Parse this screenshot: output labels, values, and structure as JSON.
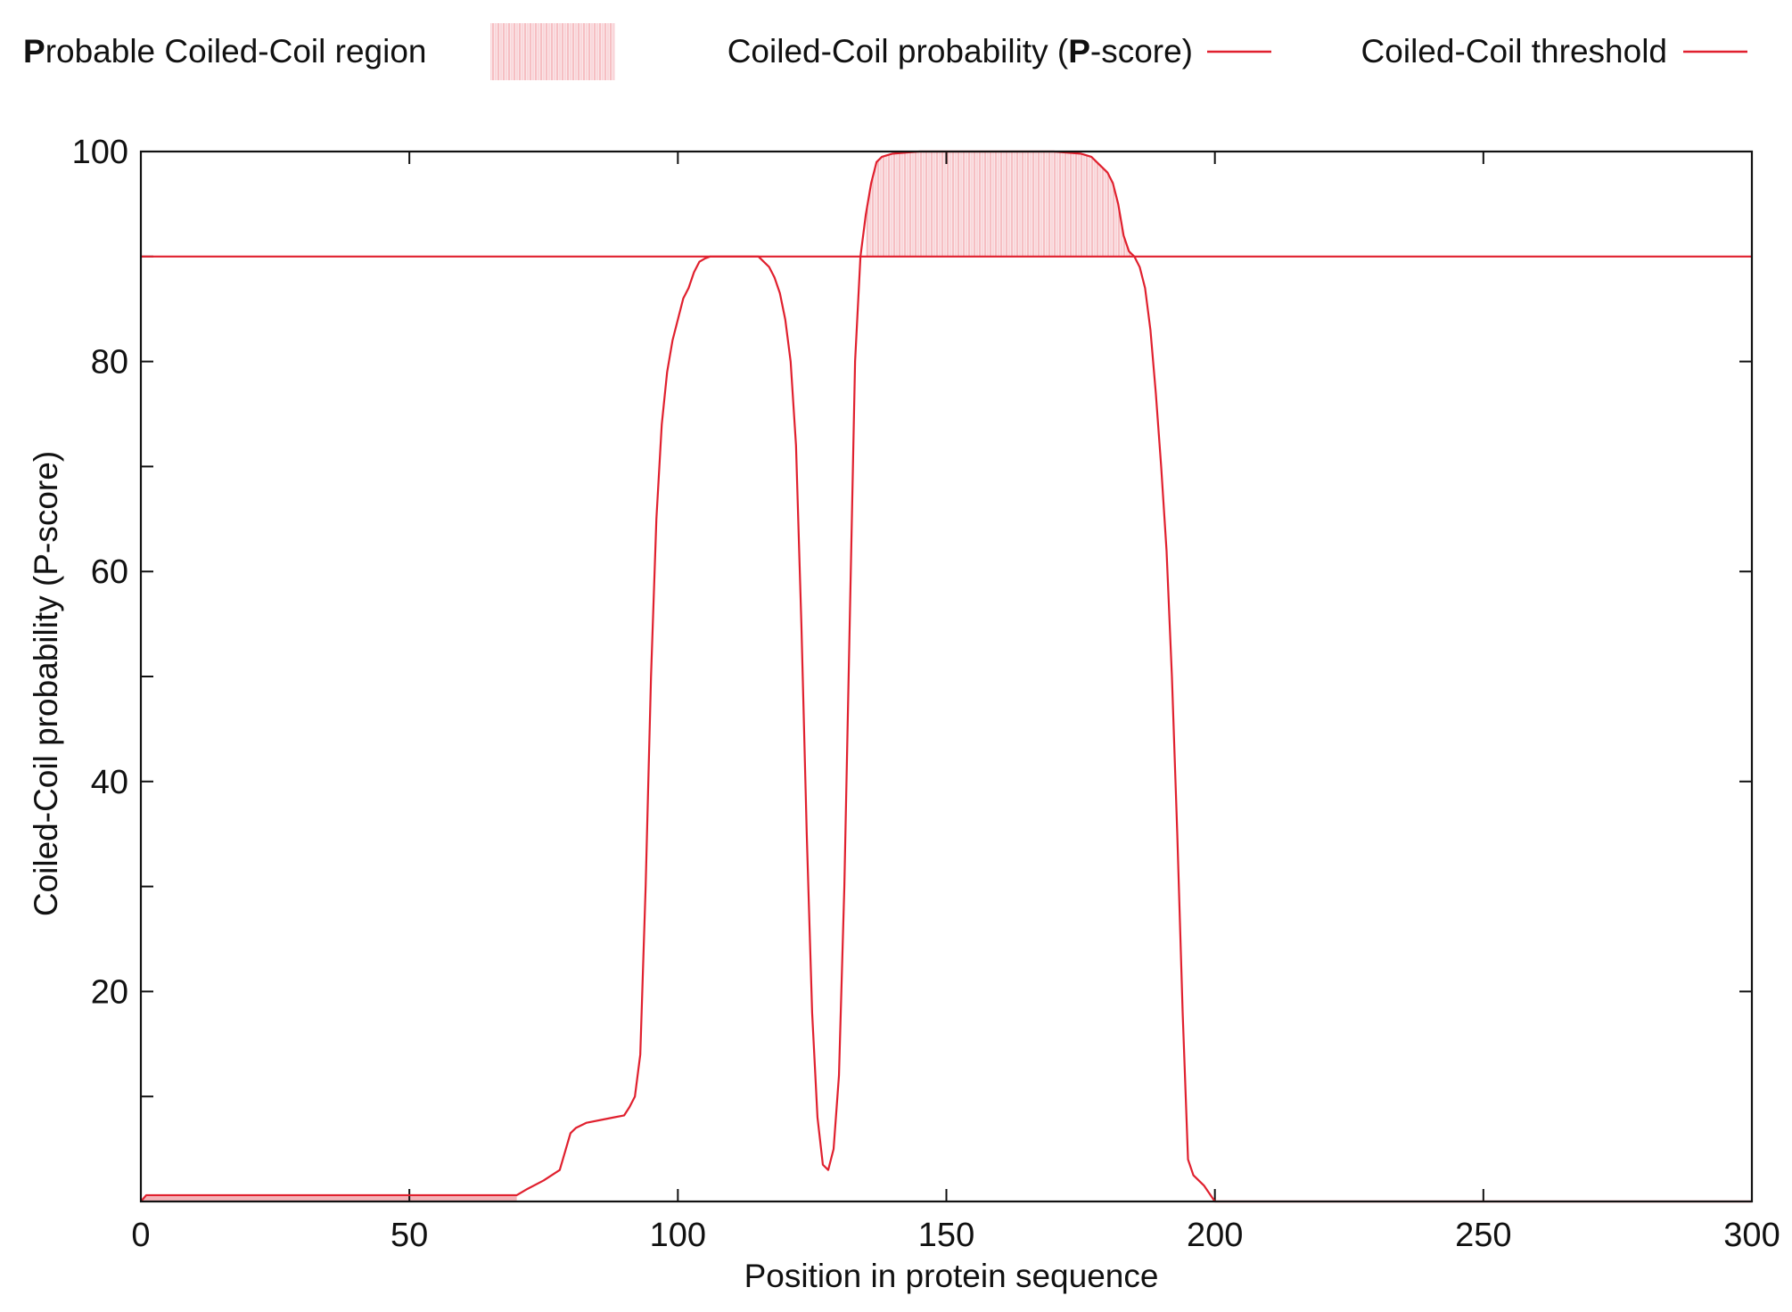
{
  "chart_data": {
    "type": "line",
    "legend": {
      "placement": "top",
      "entries": [
        {
          "label_prefix": "P",
          "label_rest": "robable Coiled-Coil region",
          "kind": "region",
          "color": "#f4b3b8"
        },
        {
          "label_prefix": "Coiled-Coil probability (",
          "label_bold": "P",
          "label_rest": "-score)",
          "kind": "line",
          "color": "#e0202e"
        },
        {
          "label": "Coiled-Coil threshold",
          "kind": "line",
          "color": "#e0202e"
        }
      ]
    },
    "xlabel": "Position in protein sequence",
    "ylabel": "Coiled-Coil probability (P-score)",
    "xlim": [
      0,
      300
    ],
    "ylim": [
      0,
      100
    ],
    "x_ticks": [
      0,
      50,
      100,
      150,
      200,
      250,
      300
    ],
    "y_ticks_labeled": [
      20,
      40,
      60,
      80,
      100
    ],
    "y_ticks_minor": [
      10,
      30,
      50,
      70,
      90
    ],
    "grid": false,
    "threshold": 90,
    "region": {
      "start": 135,
      "end": 185
    },
    "line_color": "#e0202e",
    "region_color": "#f4b3b8",
    "series": [
      {
        "x": [
          0,
          1,
          70,
          72,
          75,
          78,
          80,
          81,
          83,
          86,
          88,
          90,
          91,
          92,
          93,
          94,
          95,
          96,
          97,
          98,
          99,
          100,
          101,
          102,
          103,
          104,
          105,
          106,
          107,
          108,
          110,
          113,
          115,
          116,
          117,
          118,
          119,
          120,
          121,
          122,
          123,
          124,
          125,
          126,
          127,
          128,
          129,
          130,
          131,
          132,
          133,
          134,
          135,
          136,
          137,
          138,
          140,
          145,
          150,
          160,
          170,
          175,
          177,
          178,
          179,
          180,
          181,
          182,
          183,
          184,
          185,
          186,
          187,
          188,
          189,
          190,
          191,
          192,
          193,
          194,
          195,
          196,
          198,
          200,
          300
        ],
        "y": [
          0,
          0.6,
          0.6,
          1.2,
          2,
          3,
          6.5,
          7,
          7.5,
          7.8,
          8,
          8.2,
          9,
          10,
          14,
          30,
          50,
          65,
          74,
          79,
          82,
          84,
          86,
          87,
          88.5,
          89.5,
          89.8,
          90,
          90,
          90,
          90,
          90,
          90,
          89.5,
          89,
          88,
          86.5,
          84,
          80,
          72,
          55,
          35,
          18,
          8,
          3.5,
          3,
          5,
          12,
          30,
          55,
          80,
          90,
          94,
          97,
          99,
          99.5,
          99.8,
          100,
          100,
          100,
          100,
          99.8,
          99.5,
          99,
          98.5,
          98,
          97,
          95,
          92,
          90.5,
          90,
          89,
          87,
          83,
          77,
          70,
          62,
          50,
          35,
          18,
          4,
          2.5,
          1.5,
          0,
          0
        ]
      }
    ]
  }
}
